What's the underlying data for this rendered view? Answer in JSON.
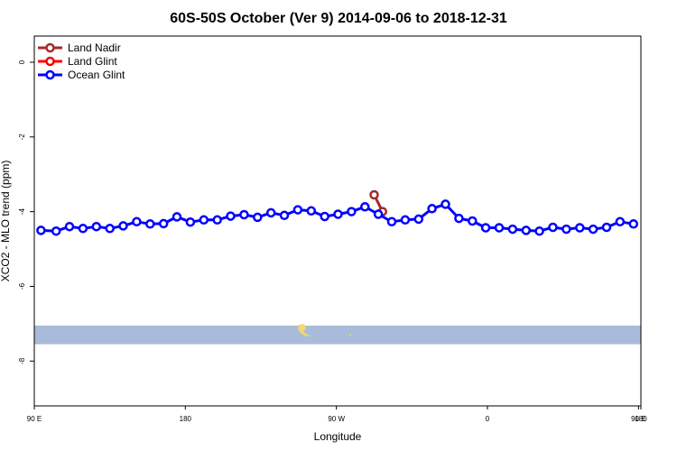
{
  "chart_data": {
    "type": "line",
    "title": "60S-50S October (Ver 9)   2014-09-06 to 2018-12-31",
    "xlabel": "Longitude",
    "ylabel": "XCO2 - MLO trend (ppm)",
    "xlim": [
      90,
      450
    ],
    "ylim": [
      -9.2,
      0.7
    ],
    "x_ticks": [
      {
        "value": 90,
        "label": "90 E"
      },
      {
        "value": 180,
        "label": "180"
      },
      {
        "value": 270,
        "label": "90 W"
      },
      {
        "value": 360,
        "label": "0"
      },
      {
        "value": 450,
        "label": "90 E"
      },
      {
        "value": 540,
        "label": "180"
      }
    ],
    "y_ticks": [
      {
        "value": 0,
        "label": "0"
      },
      {
        "value": -2,
        "label": "-2"
      },
      {
        "value": -4,
        "label": "-4"
      },
      {
        "value": -6,
        "label": "-6"
      },
      {
        "value": -8,
        "label": "-8"
      }
    ],
    "legend_position": "top-left",
    "series": [
      {
        "name": "Land Nadir",
        "color": "#a52a2a",
        "points": [
          [
            292.5,
            -3.55
          ],
          [
            297.5,
            -4.0
          ]
        ]
      },
      {
        "name": "Land Glint",
        "color": "#ff0000",
        "points": []
      },
      {
        "name": "Ocean Glint",
        "color": "#0000ff",
        "points": [
          [
            94,
            -4.5
          ],
          [
            103,
            -4.52
          ],
          [
            111,
            -4.4
          ],
          [
            119,
            -4.45
          ],
          [
            127,
            -4.4
          ],
          [
            135,
            -4.45
          ],
          [
            143,
            -4.38
          ],
          [
            151,
            -4.27
          ],
          [
            159,
            -4.33
          ],
          [
            167,
            -4.32
          ],
          [
            175,
            -4.14
          ],
          [
            183,
            -4.28
          ],
          [
            191,
            -4.22
          ],
          [
            199,
            -4.22
          ],
          [
            207,
            -4.12
          ],
          [
            215,
            -4.08
          ],
          [
            223,
            -4.15
          ],
          [
            231,
            -4.03
          ],
          [
            239,
            -4.1
          ],
          [
            247,
            -3.95
          ],
          [
            255,
            -3.98
          ],
          [
            263,
            -4.13
          ],
          [
            271,
            -4.07
          ],
          [
            279,
            -4.0
          ],
          [
            287,
            -3.87
          ],
          [
            295,
            -4.07
          ],
          [
            303,
            -4.27
          ],
          [
            311,
            -4.22
          ],
          [
            319,
            -4.2
          ],
          [
            327,
            -3.92
          ],
          [
            335,
            -3.8
          ],
          [
            343,
            -4.18
          ],
          [
            351,
            -4.25
          ],
          [
            359,
            -4.43
          ],
          [
            367,
            -4.43
          ],
          [
            375,
            -4.47
          ],
          [
            383,
            -4.5
          ],
          [
            391,
            -4.52
          ],
          [
            399,
            -4.42
          ],
          [
            407,
            -4.47
          ],
          [
            415,
            -4.43
          ],
          [
            423,
            -4.47
          ],
          [
            431,
            -4.42
          ],
          [
            439,
            -4.27
          ],
          [
            447,
            -4.33
          ]
        ]
      }
    ],
    "latitude_band": {
      "color": "#a8bcd9",
      "land_color": "#f5d76e",
      "lon_range": [
        90,
        450
      ],
      "y_range": [
        -7.55,
        -7.05
      ]
    }
  }
}
